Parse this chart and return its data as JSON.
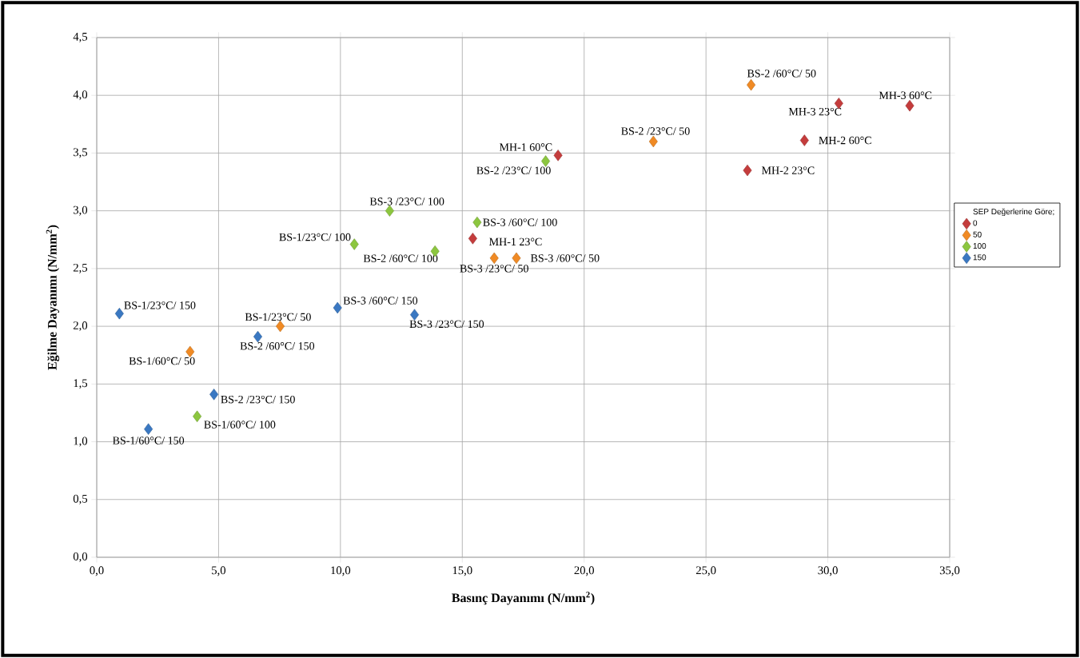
{
  "chart_data": {
    "type": "scatter",
    "xlabel": "Basınç Dayanımı (N/mm$^{2}$)",
    "ylabel": "Eğilme Dayanımı (N/mm$^{2}$)",
    "legend_title": "SEP Değerlerine Göre;",
    "legend": "right",
    "marker": "diamond",
    "grid": true,
    "xlim": [
      0,
      35
    ],
    "ylim": [
      0,
      4.5
    ],
    "xticks": [
      {
        "value": 0,
        "label": "0,0"
      },
      {
        "value": 5,
        "label": "5,0"
      },
      {
        "value": 10,
        "label": "10,0"
      },
      {
        "value": 15,
        "label": "15,0"
      },
      {
        "value": 20,
        "label": "20,0"
      },
      {
        "value": 25,
        "label": "25,0"
      },
      {
        "value": 30,
        "label": "30,0"
      },
      {
        "value": 35,
        "label": "35,0"
      }
    ],
    "yticks": [
      {
        "value": 0,
        "label": "0,0"
      },
      {
        "value": 0.5,
        "label": "0,5"
      },
      {
        "value": 1,
        "label": "1,0"
      },
      {
        "value": 1.5,
        "label": "1,5"
      },
      {
        "value": 2,
        "label": "2,0"
      },
      {
        "value": 2.5,
        "label": "2,5"
      },
      {
        "value": 3,
        "label": "3,0"
      },
      {
        "value": 3.5,
        "label": "3,5"
      },
      {
        "value": 4,
        "label": "4,0"
      },
      {
        "value": 4.5,
        "label": "4,5"
      }
    ],
    "series": [
      {
        "name": "0",
        "color": "#c43c3c",
        "x": [
          18.93,
          15.43,
          26.7,
          29.04,
          30.45,
          33.36
        ],
        "values": [
          3.48,
          2.76,
          3.35,
          3.61,
          3.93,
          3.91
        ]
      },
      {
        "name": "50",
        "color": "#f08a24",
        "x": [
          3.83,
          7.53,
          16.31,
          17.22,
          22.84,
          26.85
        ],
        "values": [
          1.78,
          2.0,
          2.59,
          2.59,
          3.6,
          4.09
        ]
      },
      {
        "name": "100",
        "color": "#8cc63f",
        "x": [
          4.12,
          10.57,
          13.88,
          12.02,
          18.42,
          15.61
        ],
        "values": [
          1.22,
          2.71,
          2.65,
          3.0,
          3.43,
          2.9
        ]
      },
      {
        "name": "150",
        "color": "#3a78c2",
        "x": [
          2.12,
          4.81,
          0.93,
          6.61,
          9.88,
          13.04
        ],
        "values": [
          1.11,
          1.41,
          2.11,
          1.91,
          2.16,
          2.1
        ]
      }
    ],
    "annotations": [
      {
        "text": "MH-1 60°C",
        "x": 18.93,
        "y": 3.48
      },
      {
        "text": "MH-1 23°C",
        "x": 15.43,
        "y": 2.76
      },
      {
        "text": "MH-2 23°C",
        "x": 26.7,
        "y": 3.35
      },
      {
        "text": "MH-2 60°C",
        "x": 29.04,
        "y": 3.61
      },
      {
        "text": "MH-3 23°C",
        "x": 30.45,
        "y": 3.93
      },
      {
        "text": "MH-3 60°C",
        "x": 33.36,
        "y": 3.91
      },
      {
        "text": "BS-1/60°C/ 50",
        "x": 3.83,
        "y": 1.78
      },
      {
        "text": "BS-1/23°C/ 50",
        "x": 7.53,
        "y": 2.0
      },
      {
        "text": "BS-3 /23°C/ 50",
        "x": 16.31,
        "y": 2.59
      },
      {
        "text": "BS-3 /60°C/ 50",
        "x": 17.22,
        "y": 2.59
      },
      {
        "text": "BS-2 /23°C/ 50",
        "x": 22.84,
        "y": 3.6
      },
      {
        "text": "BS-2 /60°C/ 50",
        "x": 26.85,
        "y": 4.09
      },
      {
        "text": "BS-1/60°C/ 100",
        "x": 4.12,
        "y": 1.22
      },
      {
        "text": "BS-1/23°C/ 100",
        "x": 10.57,
        "y": 2.71
      },
      {
        "text": "BS-2 /60°C/ 100",
        "x": 13.88,
        "y": 2.65
      },
      {
        "text": "BS-3 /23°C/ 100",
        "x": 12.02,
        "y": 3.0
      },
      {
        "text": "BS-2 /23°C/ 100",
        "x": 18.42,
        "y": 3.43
      },
      {
        "text": "BS-3 /60°C/ 100",
        "x": 15.61,
        "y": 2.9
      },
      {
        "text": "BS-1/60°C/ 150",
        "x": 2.12,
        "y": 1.11
      },
      {
        "text": "BS-2 /23°C/ 150",
        "x": 4.81,
        "y": 1.41
      },
      {
        "text": "BS-1/23°C/ 150",
        "x": 0.93,
        "y": 2.11
      },
      {
        "text": "BS-2 /60°C/ 150",
        "x": 6.61,
        "y": 1.91
      },
      {
        "text": "BS-3 /60°C/ 150",
        "x": 9.88,
        "y": 2.16
      },
      {
        "text": "BS-3 /23°C/ 150",
        "x": 13.04,
        "y": 2.1
      }
    ]
  }
}
